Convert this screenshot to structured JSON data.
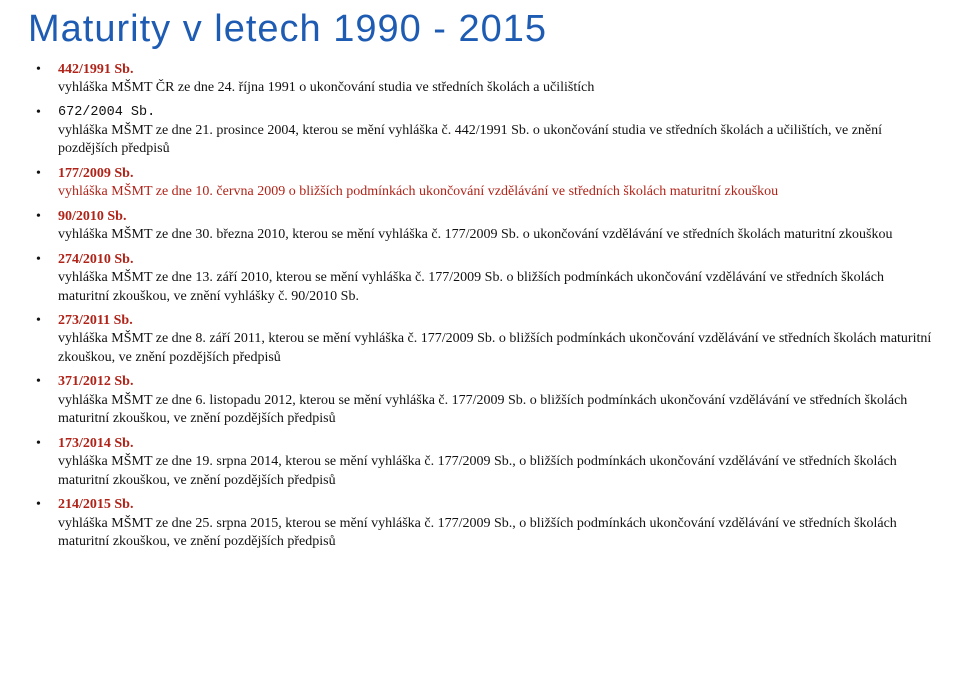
{
  "title": "Maturity v letech 1990 - 2015",
  "colors": {
    "title": "#1e5cb3",
    "red": "#b02318",
    "text": "#111111",
    "bg": "#ffffff"
  },
  "fonts": {
    "title_family": "Arial",
    "title_size_pt": 29,
    "body_family": "Georgia",
    "body_size_pt": 10.5,
    "mono_family": "Courier New"
  },
  "items": [
    {
      "head": "442/1991 Sb.",
      "head_classes": "bold red",
      "desc": "vyhláška MŠMT ČR ze dne 24. října 1991 o ukončování studia ve středních školách a učilištích",
      "desc_classes": "",
      "tight": true
    },
    {
      "head": "672/2004 Sb.",
      "head_classes": "mono",
      "desc": "vyhláška MŠMT ze dne 21. prosince 2004, kterou se mění vyhláška č. 442/1991 Sb. o ukončování studia ve středních školách a učilištích, ve znění pozdějších předpisů",
      "desc_classes": "",
      "tight": true
    },
    {
      "head": "177/2009 Sb.",
      "head_classes": "bold red",
      "desc": "vyhláška MŠMT ze dne 10. června 2009 o bližších podmínkách ukončování vzdělávání ve středních školách maturitní zkouškou",
      "desc_classes": "red",
      "tight": true
    },
    {
      "head": "90/2010 Sb.",
      "head_classes": "bold red",
      "desc": "vyhláška MŠMT ze dne 30. března 2010, kterou se mění vyhláška č. 177/2009 Sb. o ukončování vzdělávání ve středních školách maturitní zkouškou",
      "desc_classes": "",
      "tight": true
    },
    {
      "head": "274/2010 Sb.",
      "head_classes": "bold red",
      "desc": "vyhláška MŠMT ze dne 13. září 2010, kterou se mění vyhláška č. 177/2009 Sb. o bližších podmínkách ukončování vzdělávání ve středních školách maturitní zkouškou, ve znění vyhlášky č. 90/2010 Sb.",
      "desc_classes": "",
      "tight": true
    },
    {
      "head": "273/2011 Sb.",
      "head_classes": "bold red",
      "desc": "vyhláška MŠMT ze dne 8. září 2011, kterou se mění vyhláška č. 177/2009 Sb. o bližších podmínkách ukončování vzdělávání ve středních školách maturitní zkouškou, ve znění pozdějších předpisů",
      "desc_classes": "",
      "tight": true
    },
    {
      "head": "371/2012 Sb.",
      "head_classes": "bold red",
      "desc": "vyhláška MŠMT ze dne 6. listopadu 2012, kterou se mění vyhláška č. 177/2009 Sb. o bližších podmínkách ukončování vzdělávání ve středních školách maturitní zkouškou, ve znění pozdějších předpisů",
      "desc_classes": "",
      "tight": true
    },
    {
      "head": "173/2014 Sb.",
      "head_classes": "bold red",
      "desc": "vyhláška MŠMT ze dne 19. srpna 2014, kterou se mění vyhláška č. 177/2009 Sb., o bližších podmínkách ukončování vzdělávání ve středních školách maturitní zkouškou, ve znění pozdějších předpisů",
      "desc_classes": "",
      "tight": false
    },
    {
      "head": "214/2015 Sb.",
      "head_classes": "bold red",
      "desc": "vyhláška MŠMT ze dne 25. srpna 2015, kterou se mění vyhláška č. 177/2009 Sb., o bližších podmínkách ukončování vzdělávání ve středních školách maturitní zkouškou, ve znění pozdějších předpisů",
      "desc_classes": "",
      "tight": false
    }
  ]
}
